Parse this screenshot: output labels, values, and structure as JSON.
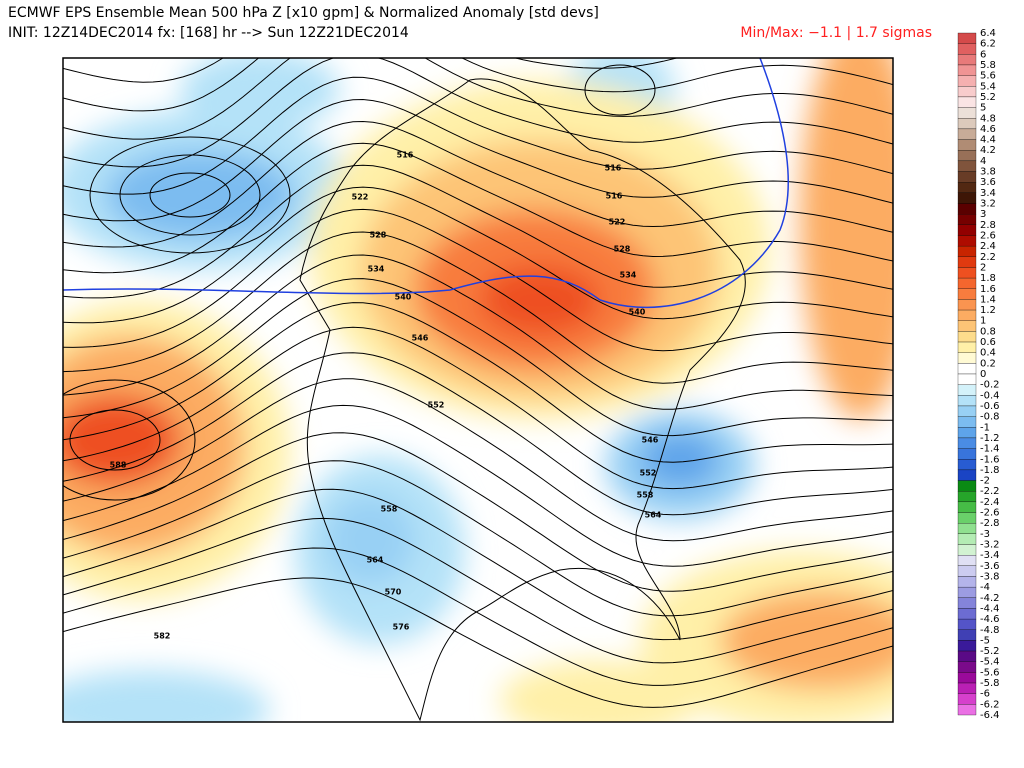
{
  "header": {
    "title_line1": "ECMWF EPS Ensemble Mean 500 hPa Z [x10 gpm] & Normalized Anomaly [std devs]",
    "title_line2": "INIT: 12Z14DEC2014 fx: [168] hr --> Sun 12Z21DEC2014",
    "minmax": "Min/Max: −1.1 | 1.7 sigmas"
  },
  "map": {
    "contour_labels": [
      516,
      516,
      516,
      522,
      522,
      528,
      528,
      534,
      534,
      540,
      540,
      546,
      552,
      546,
      552,
      558,
      564,
      558,
      564,
      570,
      576,
      582,
      588
    ]
  },
  "colorbar": {
    "labels": [
      6.4,
      6.2,
      6,
      5.8,
      5.6,
      5.4,
      5.2,
      5,
      4.8,
      4.6,
      4.4,
      4.2,
      4,
      3.8,
      3.6,
      3.4,
      3.2,
      3,
      2.8,
      2.6,
      2.4,
      2.2,
      2,
      1.8,
      1.6,
      1.4,
      1.2,
      1,
      0.8,
      0.6,
      0.4,
      0.2,
      0,
      -0.2,
      -0.4,
      -0.6,
      -0.8,
      -1,
      -1.2,
      -1.4,
      -1.6,
      -1.8,
      -2,
      -2.2,
      -2.4,
      -2.6,
      -2.8,
      -3,
      -3.2,
      -3.4,
      -3.6,
      -3.8,
      -4,
      -4.2,
      -4.4,
      -4.6,
      -4.8,
      -5,
      -5.2,
      -5.4,
      -5.6,
      -5.8,
      -6,
      -6.2,
      -6.4
    ],
    "colors": [
      "#d44a4a",
      "#e06060",
      "#e87a7a",
      "#f09494",
      "#f5b0b0",
      "#f8cccc",
      "#fae4e4",
      "#ece0d8",
      "#dccabc",
      "#c8ac98",
      "#b08c74",
      "#987058",
      "#80543c",
      "#683c26",
      "#522812",
      "#3e1606",
      "#5a0000",
      "#760000",
      "#920000",
      "#ae0c00",
      "#c82400",
      "#e03a10",
      "#ee5020",
      "#f4662e",
      "#f87c3e",
      "#fa9450",
      "#fcac62",
      "#fdc476",
      "#fddc8c",
      "#fff0a8",
      "#fffad4",
      "#ffffff",
      "#ffffff",
      "#d4f2fa",
      "#b4e2f8",
      "#98d0f4",
      "#7cbcf0",
      "#5ea4ea",
      "#4a8ce4",
      "#3874dc",
      "#285cd2",
      "#1a44c4",
      "#0a8a14",
      "#26a52a",
      "#46bc46",
      "#6ad06a",
      "#90e090",
      "#b4ecb4",
      "#d2f2d2",
      "#e0e0f4",
      "#ccccf0",
      "#b4b4ea",
      "#9c9ce2",
      "#8484da",
      "#6c6cd2",
      "#5454c8",
      "#4040b4",
      "#3a1a9a",
      "#5a0a86",
      "#7a0a8a",
      "#9a0a9a",
      "#ba20b4",
      "#d640cc",
      "#ea70e4"
    ]
  }
}
